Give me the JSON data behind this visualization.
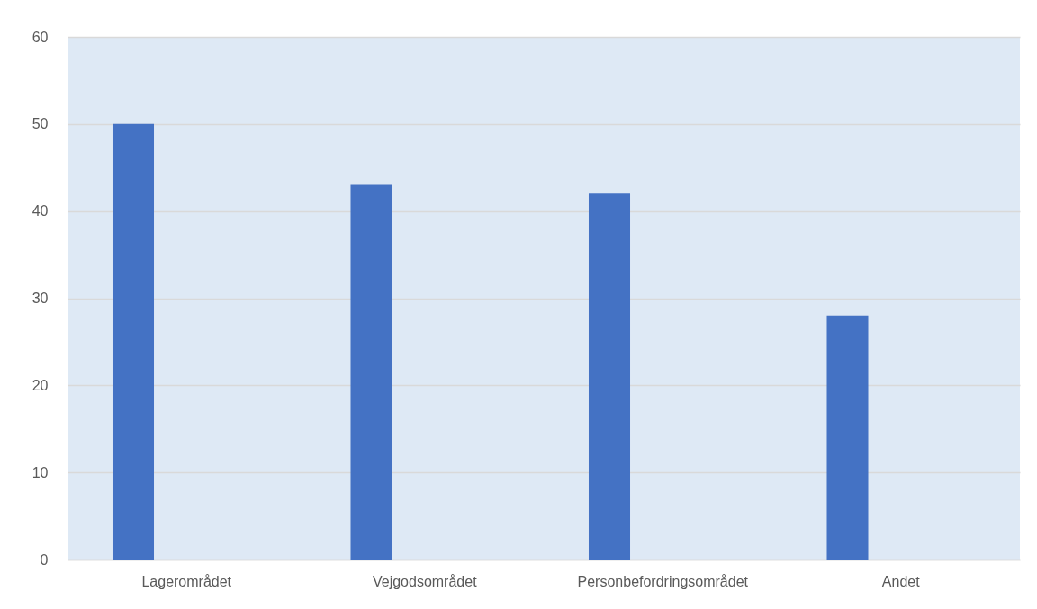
{
  "chart_data": {
    "type": "bar",
    "categories": [
      "Lagerområdet",
      "Vejgodsområdet",
      "Personbefordringsområdet",
      "Andet"
    ],
    "values": [
      50,
      43,
      42,
      28
    ],
    "color": "#4472c4",
    "ylim": [
      0,
      60
    ],
    "yticks": [
      0,
      10,
      20,
      30,
      40,
      50,
      60
    ],
    "grid": "y"
  }
}
